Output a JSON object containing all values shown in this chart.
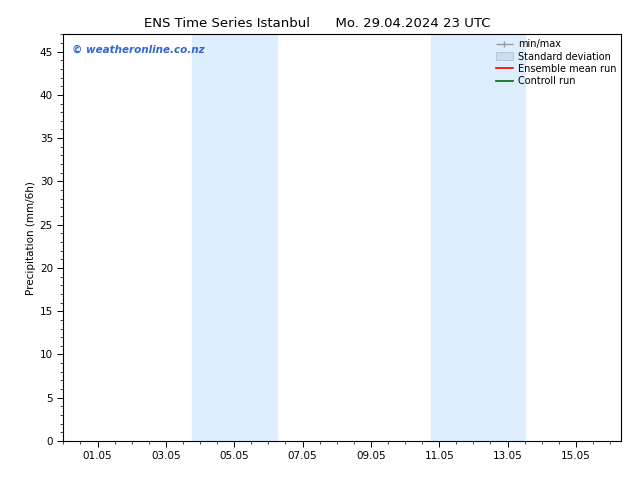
{
  "title_left": "ENS Time Series Istanbul",
  "title_right": "Mo. 29.04.2024 23 UTC",
  "ylabel": "Precipitation (mm/6h)",
  "ylim": [
    0,
    47
  ],
  "yticks": [
    0,
    5,
    10,
    15,
    20,
    25,
    30,
    35,
    40,
    45
  ],
  "xtick_labels": [
    "01.05",
    "03.05",
    "05.05",
    "07.05",
    "09.05",
    "11.05",
    "13.05",
    "15.05"
  ],
  "xtick_positions": [
    1,
    3,
    5,
    7,
    9,
    11,
    13,
    15
  ],
  "xmin": 0.0,
  "xmax": 16.33,
  "shaded_regions": [
    {
      "xmin": 3.75,
      "xmax": 6.25
    },
    {
      "xmin": 10.75,
      "xmax": 13.5
    }
  ],
  "shaded_color": "#ddeeff",
  "watermark_text": "© weatheronline.co.nz",
  "watermark_color": "#3366cc",
  "bg_color": "#ffffff",
  "plot_bg_color": "#ffffff",
  "font_size": 7.5,
  "title_font_size": 9.5
}
